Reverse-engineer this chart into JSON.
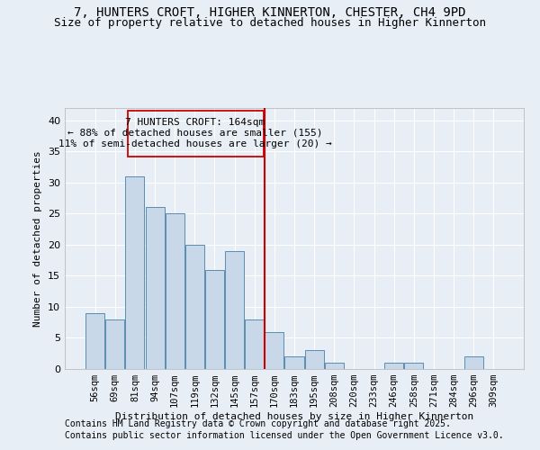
{
  "title_line1": "7, HUNTERS CROFT, HIGHER KINNERTON, CHESTER, CH4 9PD",
  "title_line2": "Size of property relative to detached houses in Higher Kinnerton",
  "xlabel": "Distribution of detached houses by size in Higher Kinnerton",
  "ylabel": "Number of detached properties",
  "categories": [
    "56sqm",
    "69sqm",
    "81sqm",
    "94sqm",
    "107sqm",
    "119sqm",
    "132sqm",
    "145sqm",
    "157sqm",
    "170sqm",
    "183sqm",
    "195sqm",
    "208sqm",
    "220sqm",
    "233sqm",
    "246sqm",
    "258sqm",
    "271sqm",
    "284sqm",
    "296sqm",
    "309sqm"
  ],
  "values": [
    9,
    8,
    31,
    26,
    25,
    20,
    16,
    19,
    8,
    6,
    2,
    3,
    1,
    0,
    0,
    1,
    1,
    0,
    0,
    2,
    0
  ],
  "bar_color": "#c8d8e8",
  "bar_edge_color": "#5a8db0",
  "vline_x": 8.5,
  "vline_color": "#cc0000",
  "annotation_line1": "7 HUNTERS CROFT: 164sqm",
  "annotation_line2": "← 88% of detached houses are smaller (155)",
  "annotation_line3": "11% of semi-detached houses are larger (20) →",
  "annotation_box_color": "#cc0000",
  "ylim": [
    0,
    42
  ],
  "yticks": [
    0,
    5,
    10,
    15,
    20,
    25,
    30,
    35,
    40
  ],
  "bg_color": "#e8eef5",
  "grid_color": "#ffffff",
  "footer_line1": "Contains HM Land Registry data © Crown copyright and database right 2025.",
  "footer_line2": "Contains public sector information licensed under the Open Government Licence v3.0.",
  "title_fontsize": 10,
  "subtitle_fontsize": 9,
  "annotation_fontsize": 8,
  "footer_fontsize": 7,
  "axis_label_fontsize": 8,
  "tick_fontsize": 7.5,
  "ytick_fontsize": 8
}
